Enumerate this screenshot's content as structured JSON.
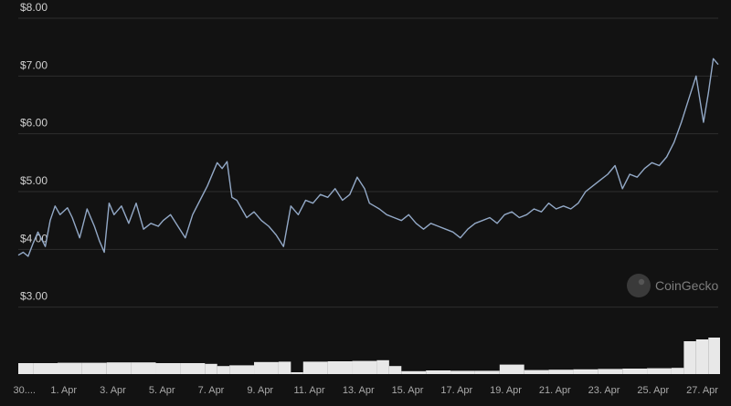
{
  "watermark": {
    "text": "CoinGecko",
    "icon": "gecko-logo-icon"
  },
  "colors": {
    "background": "#121212",
    "line": "#93a9c7",
    "grid": "#2e2e2e",
    "volume": "#e8e8e8"
  },
  "chart_data": {
    "type": "line",
    "title": "",
    "xlabel": "",
    "ylabel": "",
    "ylim": [
      2.0,
      8.0
    ],
    "y_ticks": [
      "$3.00",
      "$4.00",
      "$5.00",
      "$6.00",
      "$7.00",
      "$8.00"
    ],
    "x_ticks": [
      "30....",
      "1. Apr",
      "3. Apr",
      "5. Apr",
      "7. Apr",
      "9. Apr",
      "11. Apr",
      "13. Apr",
      "15. Apr",
      "17. Apr",
      "19. Apr",
      "21. Apr",
      "23. Apr",
      "25. Apr",
      "27. Apr"
    ],
    "grid": true,
    "x_domain": [
      29.9,
      58.4
    ],
    "price_series": {
      "name": "",
      "x": [
        29.9,
        30.1,
        30.3,
        30.5,
        30.7,
        31.0,
        31.2,
        31.4,
        31.6,
        31.9,
        32.1,
        32.4,
        32.7,
        33.0,
        33.2,
        33.4,
        33.6,
        33.8,
        34.1,
        34.4,
        34.7,
        35.0,
        35.3,
        35.6,
        35.8,
        36.1,
        36.4,
        36.7,
        37.0,
        37.3,
        37.6,
        37.9,
        38.0,
        38.2,
        38.4,
        38.6,
        38.8,
        39.0,
        39.2,
        39.5,
        39.8,
        40.1,
        40.4,
        40.7,
        41.0,
        41.3,
        41.6,
        41.9,
        42.2,
        42.5,
        42.8,
        43.1,
        43.4,
        43.7,
        44.0,
        44.2,
        44.4,
        44.6,
        44.9,
        45.2,
        45.5,
        45.8,
        46.1,
        46.4,
        46.7,
        47.0,
        47.3,
        47.6,
        47.9,
        48.2,
        48.5,
        48.8,
        49.1,
        49.4,
        49.7,
        50.0,
        50.3,
        50.6,
        50.9,
        51.2,
        51.5,
        51.8,
        52.1,
        52.4,
        52.7,
        53.0,
        53.3,
        53.6,
        53.9,
        54.2,
        54.5,
        54.8,
        55.1,
        55.4,
        55.7,
        56.0,
        56.3,
        56.6,
        56.9,
        57.2,
        57.5,
        57.8,
        58.0,
        58.2,
        58.4
      ],
      "values": [
        3.9,
        3.95,
        3.88,
        4.1,
        4.3,
        4.05,
        4.5,
        4.75,
        4.6,
        4.72,
        4.55,
        4.2,
        4.7,
        4.4,
        4.15,
        3.95,
        4.8,
        4.6,
        4.75,
        4.45,
        4.8,
        4.35,
        4.45,
        4.4,
        4.5,
        4.6,
        4.4,
        4.2,
        4.6,
        4.85,
        5.1,
        5.4,
        5.5,
        5.4,
        5.52,
        4.9,
        4.85,
        4.7,
        4.55,
        4.65,
        4.5,
        4.4,
        4.25,
        4.05,
        4.75,
        4.6,
        4.85,
        4.8,
        4.95,
        4.9,
        5.05,
        4.85,
        4.95,
        5.25,
        5.05,
        4.8,
        4.75,
        4.7,
        4.6,
        4.55,
        4.5,
        4.6,
        4.45,
        4.35,
        4.45,
        4.4,
        4.35,
        4.3,
        4.2,
        4.35,
        4.45,
        4.5,
        4.55,
        4.45,
        4.6,
        4.65,
        4.55,
        4.6,
        4.7,
        4.65,
        4.8,
        4.7,
        4.75,
        4.7,
        4.8,
        5.0,
        5.1,
        5.2,
        5.3,
        5.45,
        5.05,
        5.3,
        5.25,
        5.4,
        5.5,
        5.45,
        5.6,
        5.85,
        6.2,
        6.6,
        7.0,
        6.2,
        6.7,
        7.3,
        7.2
      ]
    },
    "volume_series": {
      "name": "",
      "x": [
        29.9,
        30.5,
        31.5,
        32.5,
        33.5,
        34.5,
        35.5,
        36.5,
        37.5,
        38.0,
        38.5,
        39.5,
        40.5,
        41.0,
        41.5,
        42.5,
        43.5,
        44.5,
        45.0,
        45.5,
        46.5,
        47.5,
        48.5,
        49.5,
        50.5,
        51.5,
        52.5,
        53.5,
        54.5,
        55.5,
        56.5,
        57.0,
        57.5,
        58.0,
        58.4
      ],
      "values": [
        30,
        30,
        31,
        31,
        32,
        32,
        30,
        30,
        28,
        22,
        24,
        33,
        34,
        5,
        34,
        35,
        36,
        38,
        22,
        8,
        10,
        9,
        9,
        26,
        11,
        12,
        13,
        14,
        15,
        16,
        17,
        90,
        95,
        100,
        100
      ]
    }
  }
}
